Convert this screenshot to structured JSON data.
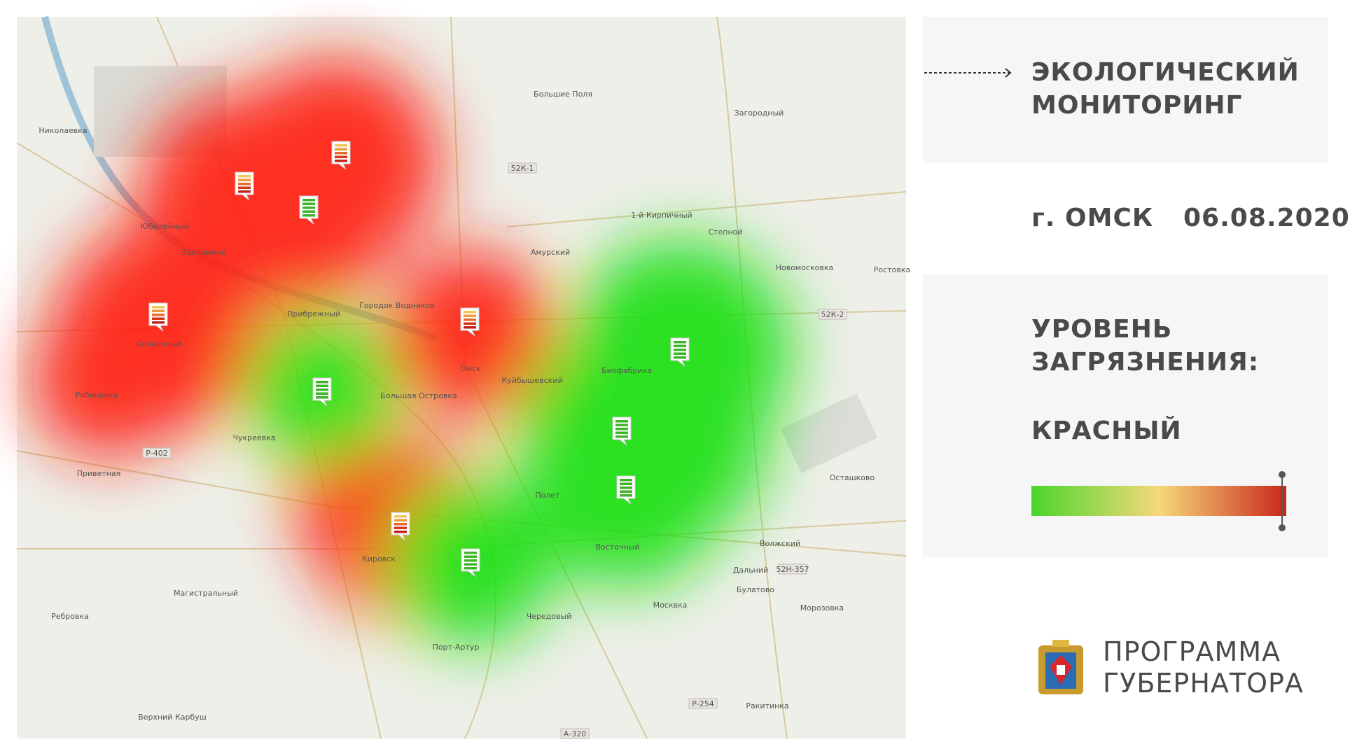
{
  "header": {
    "title_lines": [
      "ЭКОЛОГИЧЕСКИЙ",
      "МОНИТОРИНГ"
    ],
    "city": "г. ОМСК",
    "date": "06.08.2020"
  },
  "pollution": {
    "label_lines": [
      "УРОВЕНЬ",
      "ЗАГРЯЗНЕНИЯ:"
    ],
    "level": "КРАСНЫЙ"
  },
  "program": {
    "lines": [
      "ПРОГРАММА",
      "ГУБЕРНАТОРА"
    ]
  },
  "map": {
    "places": [
      "Николаевка",
      "Юбилейный",
      "Захламино",
      "Большие Поля",
      "Загородный",
      "1-й Кирпичный",
      "Степной",
      "Амурский",
      "Новомосковка",
      "Ростовка",
      "Городок Водников",
      "Прибрежный",
      "Солнечный",
      "Омск",
      "Куйбышевский",
      "Биофабрика",
      "Рябиновка",
      "Большая Островка",
      "Чукреевка",
      "Приветная",
      "Осташково",
      "Полет",
      "Восточный",
      "Волжский",
      "Кировск",
      "Дальний",
      "Магистральный",
      "Булатово",
      "Ребровка",
      "Чередовый",
      "Москвка",
      "Морозовка",
      "Порт-Артур",
      "Ракитинка",
      "Верхний Карбуш"
    ],
    "roads": [
      "52К-1",
      "52К-2",
      "Р-402",
      "52Н-357",
      "Р-254",
      "А-320"
    ]
  }
}
